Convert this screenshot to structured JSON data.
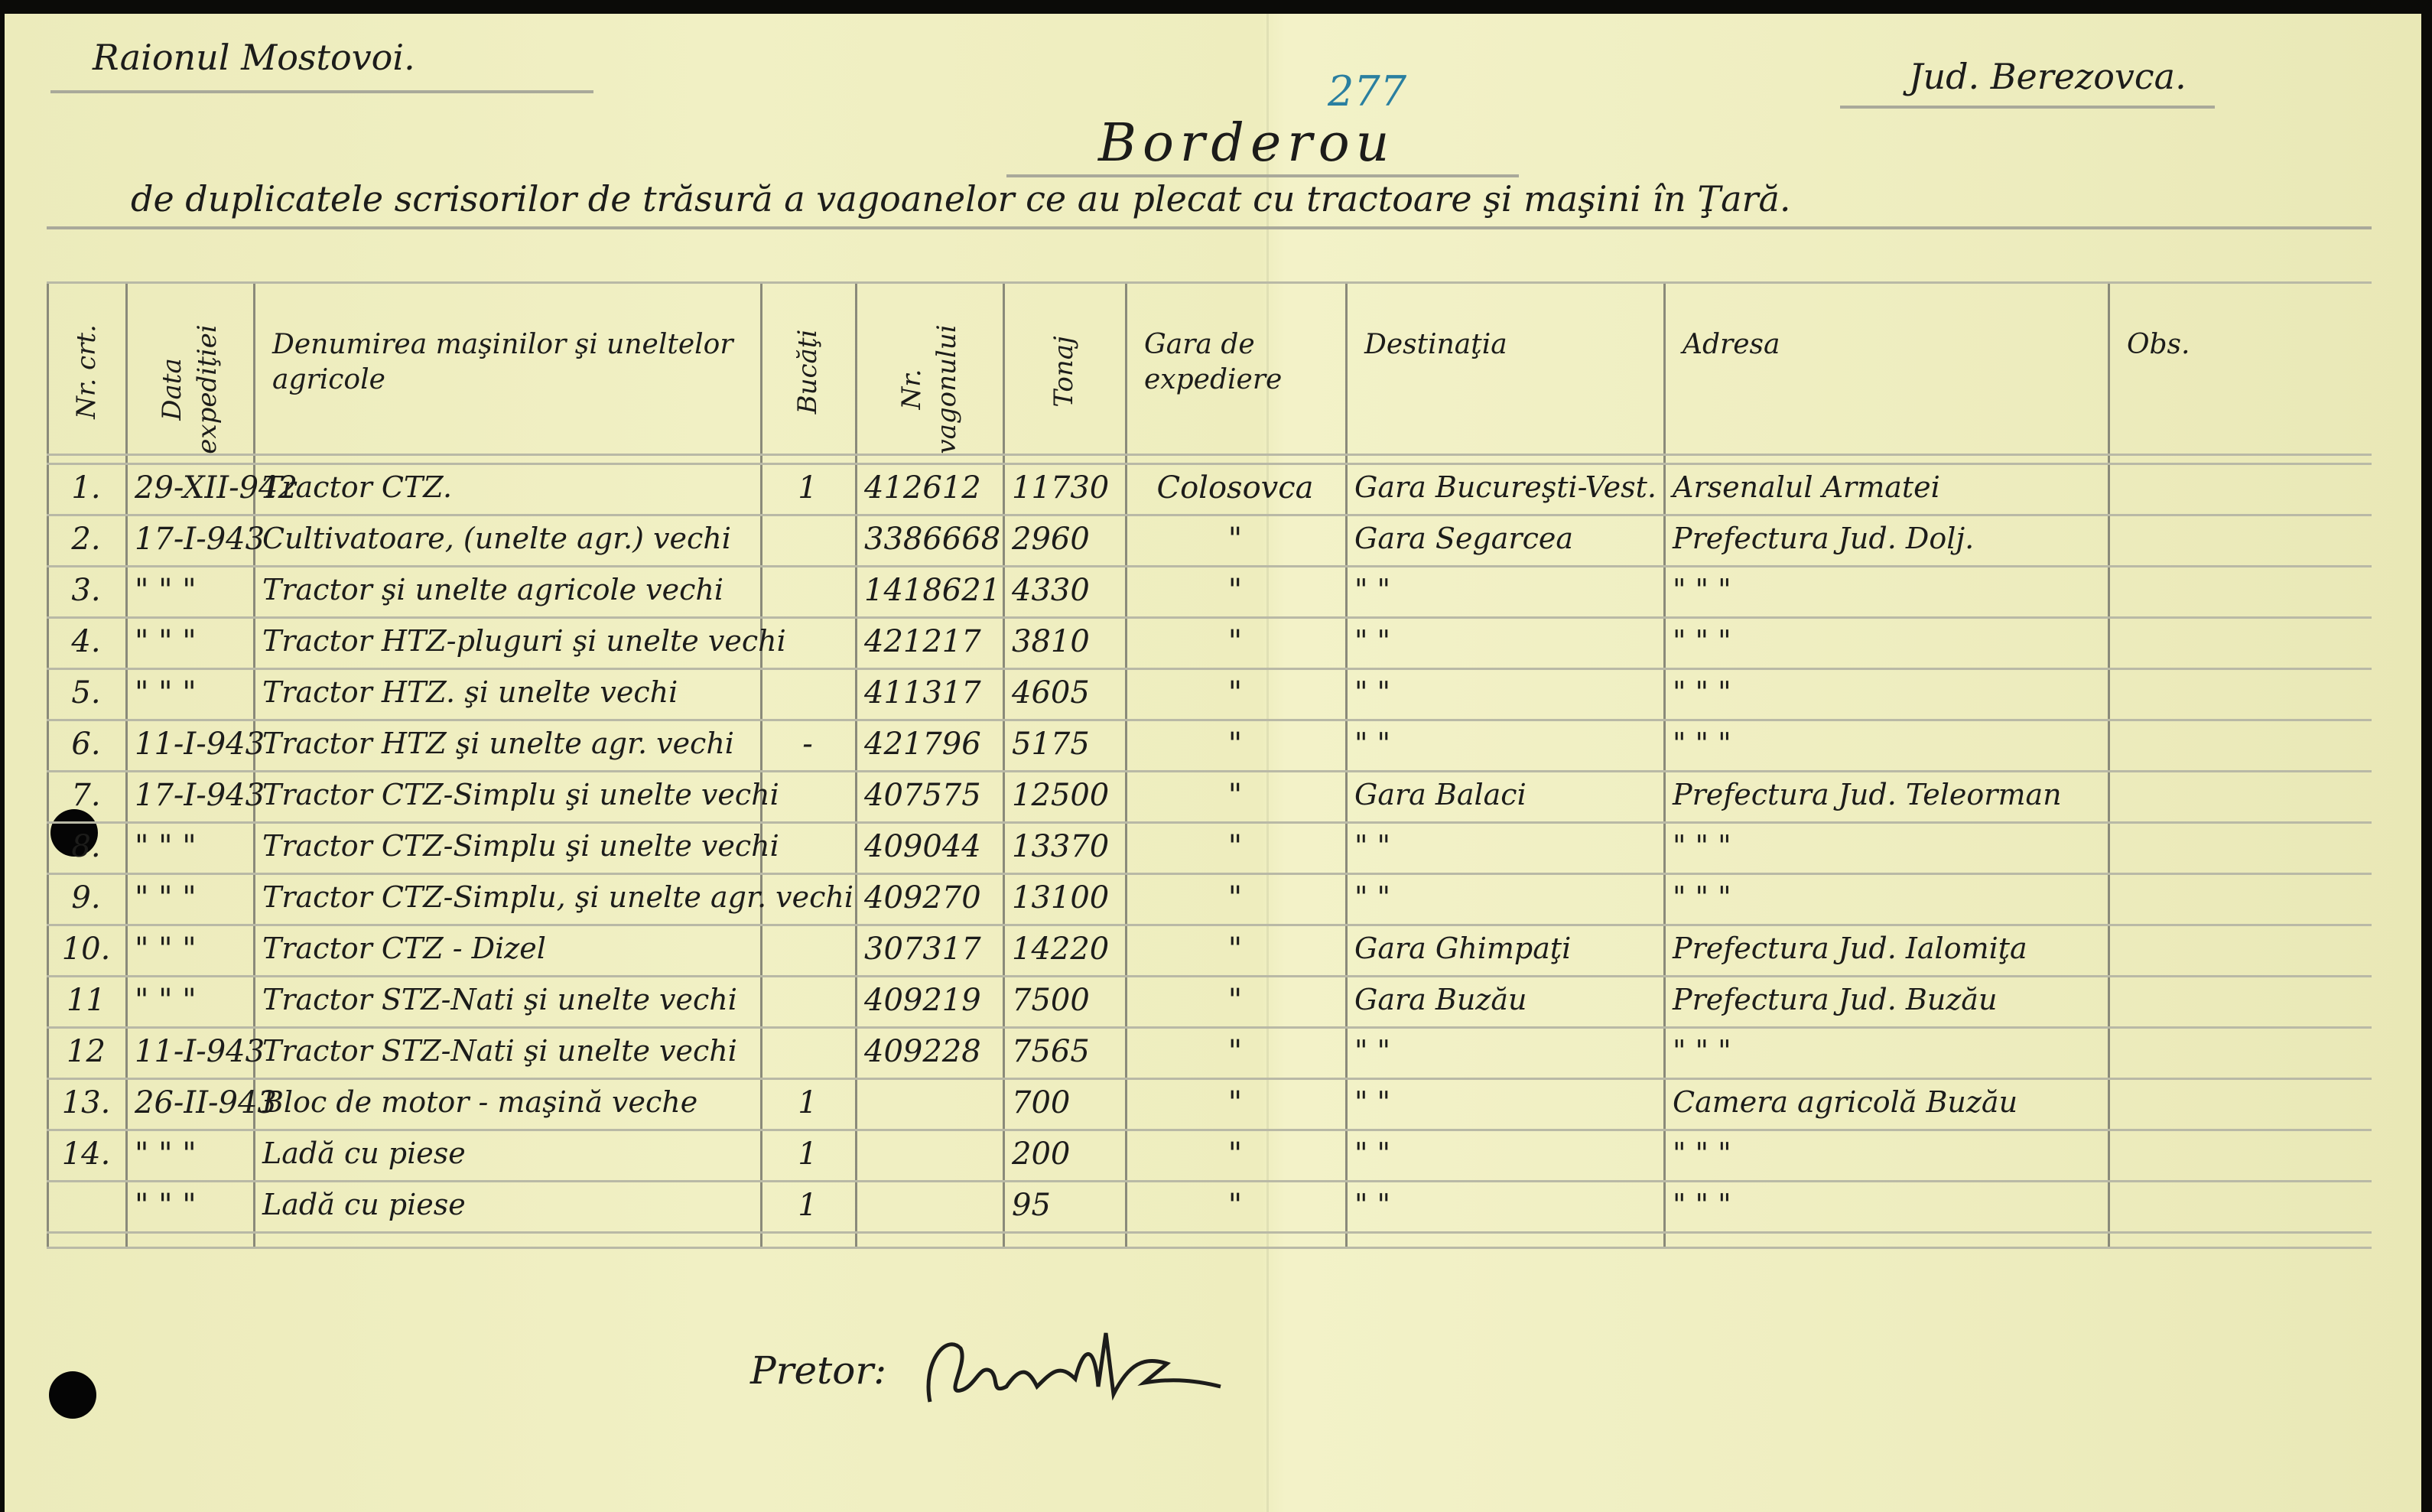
{
  "header": {
    "district": "Raionul Mostovoi.",
    "county": "Jud. Berezovca.",
    "title": "Borderou",
    "number": "277",
    "subtitle": "de duplicatele scrisorilor de trăsură a vagoanelor ce au plecat cu tractoare şi maşini în Ţară."
  },
  "colors": {
    "paper": "#efeec0",
    "ink": "#1c1c1a",
    "blue_ink": "#2a7fa0",
    "rules": "#b9b9a6"
  },
  "table": {
    "columns": [
      "Nr. crt.",
      "Data expediţiei",
      "Denumirea maşinilor şi uneltelor agricole",
      "Bucăţi",
      "Nr. vagonului",
      "Tonaj",
      "Gara de expediere",
      "Destinaţia",
      "Adresa",
      "Obs."
    ],
    "rows": [
      [
        "1.",
        "29-XII-942",
        "Tractor CTZ.",
        "1",
        "412612",
        "11730",
        "Colosovca",
        "Gara Bucureşti-Vest.",
        "Arsenalul Armatei",
        ""
      ],
      [
        "2.",
        "17-I-943",
        "Cultivatoare, (unelte agr.) vechi",
        "",
        "3386668",
        "2960",
        "\"",
        "Gara Segarcea",
        "Prefectura Jud. Dolj.",
        ""
      ],
      [
        "3.",
        "\"  \"  \"",
        "Tractor şi unelte agricole vechi",
        "",
        "1418621",
        "4330",
        "\"",
        "\"        \"",
        "\"     \"     \"",
        ""
      ],
      [
        "4.",
        "\"  \"  \"",
        "Tractor HTZ-pluguri şi unelte vechi",
        "",
        "421217",
        "3810",
        "\"",
        "\"        \"",
        "\"     \"     \"",
        ""
      ],
      [
        "5.",
        "\"  \"  \"",
        "Tractor HTZ. şi unelte vechi",
        "",
        "411317",
        "4605",
        "\"",
        "\"        \"",
        "\"     \"     \"",
        ""
      ],
      [
        "6.",
        "11-I-943",
        "Tractor HTZ şi unelte agr. vechi",
        "-",
        "421796",
        "5175",
        "\"",
        "\"        \"",
        "\"     \"     \"",
        ""
      ],
      [
        "7.",
        "17-I-943",
        "Tractor CTZ-Simplu şi unelte vechi",
        "",
        "407575",
        "12500",
        "\"",
        "Gara Balaci",
        "Prefectura Jud. Teleorman",
        ""
      ],
      [
        "8.",
        "\"  \"  \"",
        "Tractor CTZ-Simplu şi unelte vechi",
        "",
        "409044",
        "13370",
        "\"",
        "\"        \"",
        "\"     \"     \"",
        ""
      ],
      [
        "9.",
        "\"  \"  \"",
        "Tractor CTZ-Simplu, şi unelte agr. vechi",
        "",
        "409270",
        "13100",
        "\"",
        "\"        \"",
        "\"     \"     \"",
        ""
      ],
      [
        "10.",
        "\"  \"  \"",
        "Tractor CTZ - Dizel",
        "",
        "307317",
        "14220",
        "\"",
        "Gara Ghimpaţi",
        "Prefectura Jud. Ialomiţa",
        ""
      ],
      [
        "11",
        "\"  \"  \"",
        "Tractor STZ-Nati şi unelte vechi",
        "",
        "409219",
        "7500",
        "\"",
        "Gara Buzău",
        "Prefectura Jud. Buzău",
        ""
      ],
      [
        "12",
        "11-I-943",
        "Tractor STZ-Nati şi unelte vechi",
        "",
        "409228",
        "7565",
        "\"",
        "\"        \"",
        "\"     \"     \"",
        ""
      ],
      [
        "13.",
        "26-II-943",
        "Bloc de motor - maşină veche",
        "1",
        "",
        "700",
        "\"",
        "\"        \"",
        "Camera agricolă Buzău",
        ""
      ],
      [
        "14.",
        "\"  \"  \"",
        "Ladă cu piese",
        "1",
        "",
        "200",
        "\"",
        "\"        \"",
        "\"     \"     \"",
        ""
      ],
      [
        "",
        "\"  \"  \"",
        "Ladă cu piese",
        "1",
        "",
        "95",
        "\"",
        "\"        \"",
        "\"     \"     \"",
        ""
      ]
    ]
  },
  "footer": {
    "signatory_label": "Pretor:",
    "signature": "Alecsandr"
  }
}
